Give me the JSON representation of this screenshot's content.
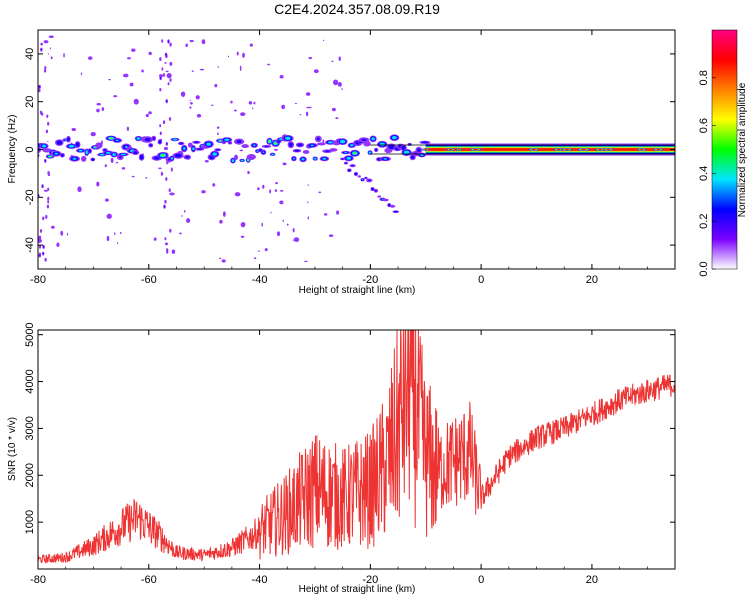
{
  "title": "C2E4.2024.357.08.09.R19",
  "chart_data": [
    {
      "type": "heatmap",
      "xlabel": "Height of straight line (km)",
      "ylabel": "Frequency (Hz)",
      "xlim": [
        -80,
        35
      ],
      "ylim": [
        -50,
        50
      ],
      "xticks": [
        -80,
        -60,
        -40,
        -20,
        0,
        20
      ],
      "yticks": [
        -40,
        -20,
        0,
        20,
        40
      ],
      "colorbar": {
        "label": "Normalized spectral amplitude",
        "range": [
          0,
          1
        ],
        "ticks": [
          0.0,
          0.2,
          0.4,
          0.6,
          0.8
        ],
        "tick_labels": [
          "0.0",
          "0.2",
          "0.4",
          "0.6",
          "0.8"
        ],
        "colormap": [
          "#ffffff",
          "#7b00ff",
          "#0000ff",
          "#00e5ff",
          "#00ff00",
          "#ffff00",
          "#ff8000",
          "#ff0000",
          "#ff0080"
        ]
      },
      "features": [
        {
          "x_start": -80,
          "x_end": -10,
          "freq_center": 0,
          "freq_spread": 5,
          "amplitude": 0.45,
          "note": "patchy broadband band"
        },
        {
          "x_start": -10,
          "x_end": 35,
          "freq_center": 0,
          "freq_spread": 1,
          "amplitude": 0.95,
          "note": "narrow carrier line"
        },
        {
          "x_start": -25,
          "x_end": -15,
          "freq_center": -20,
          "freq_spread": 4,
          "amplitude": 0.3,
          "note": "descending branch"
        }
      ]
    },
    {
      "type": "line",
      "xlabel": "Height of straight line (km)",
      "ylabel": "SNR (10 * v/v)",
      "xlim": [
        -80,
        35
      ],
      "ylim": [
        0,
        5100
      ],
      "xticks": [
        -80,
        -60,
        -40,
        -20,
        0,
        20
      ],
      "yticks": [
        1000,
        2000,
        3000,
        4000,
        5000
      ],
      "series": [
        {
          "color": "#ee3333",
          "x": [
            -80,
            -75,
            -70,
            -65,
            -62,
            -58,
            -55,
            -50,
            -45,
            -40,
            -35,
            -30,
            -25,
            -20,
            -17,
            -15,
            -13,
            -12,
            -10,
            -8,
            -5,
            -2,
            0,
            5,
            10,
            15,
            20,
            25,
            30,
            35
          ],
          "values": [
            200,
            250,
            500,
            900,
            1100,
            700,
            350,
            300,
            450,
            800,
            1200,
            1700,
            1500,
            1700,
            2200,
            3000,
            4200,
            3500,
            2400,
            2100,
            2300,
            2500,
            1500,
            2400,
            2800,
            3000,
            3300,
            3600,
            3800,
            3950
          ]
        }
      ]
    }
  ]
}
